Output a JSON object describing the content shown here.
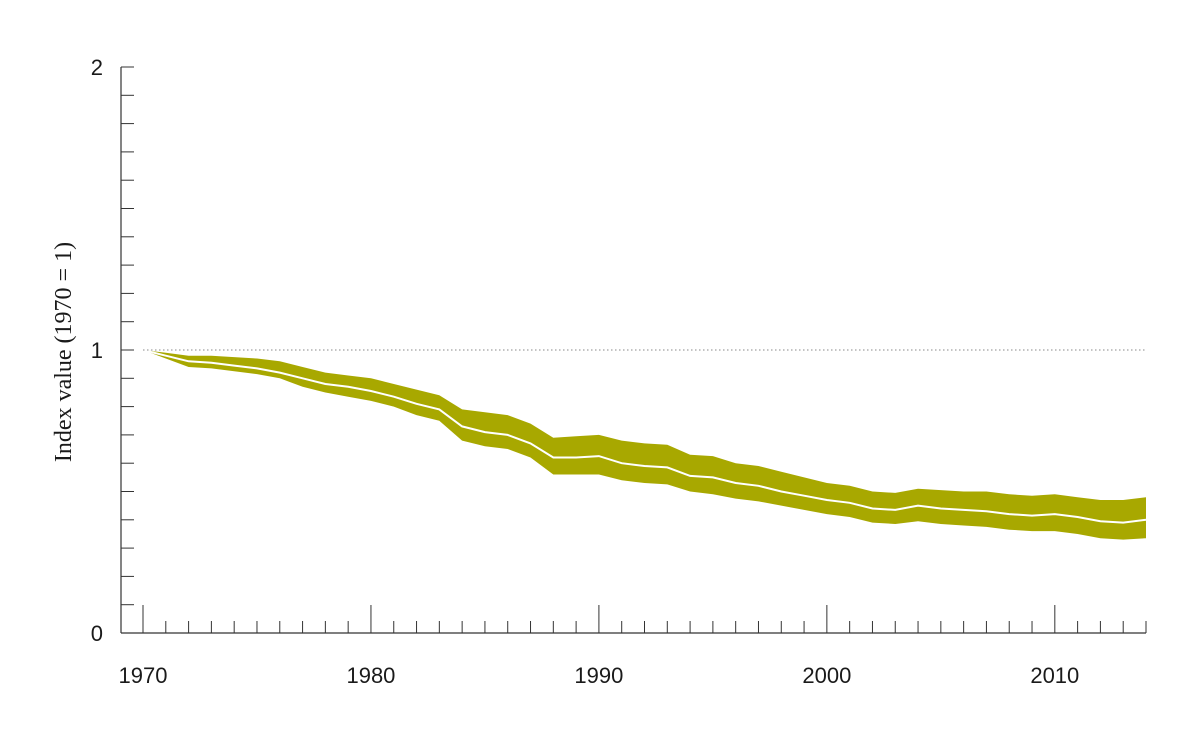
{
  "chart_data": {
    "type": "area",
    "title": "",
    "xlabel": "",
    "ylabel": "Index value (1970 = 1)",
    "xlim": [
      1970,
      2014
    ],
    "ylim": [
      0,
      2
    ],
    "x_ticks_major": [
      1970,
      1980,
      1990,
      2000,
      2010
    ],
    "x_tick_labels": [
      "1970",
      "1980",
      "1990",
      "2000",
      "2010"
    ],
    "y_ticks_major": [
      0,
      1,
      2
    ],
    "y_tick_labels": [
      "0",
      "1",
      "2"
    ],
    "y_minor_step": 0.1,
    "reference_line": {
      "y": 1,
      "style": "dotted"
    },
    "grid": false,
    "legend": "none",
    "colors": {
      "band": "#a8a800",
      "line": "#ffffff",
      "axis": "#333333",
      "reference": "#888888"
    },
    "x": [
      1970,
      1971,
      1972,
      1973,
      1974,
      1975,
      1976,
      1977,
      1978,
      1979,
      1980,
      1981,
      1982,
      1983,
      1984,
      1985,
      1986,
      1987,
      1988,
      1989,
      1990,
      1991,
      1992,
      1993,
      1994,
      1995,
      1996,
      1997,
      1998,
      1999,
      2000,
      2001,
      2002,
      2003,
      2004,
      2005,
      2006,
      2007,
      2008,
      2009,
      2010,
      2011,
      2012,
      2013,
      2014
    ],
    "series": [
      {
        "values": [
          1.0,
          0.98,
          0.96,
          0.955,
          0.945,
          0.935,
          0.92,
          0.9,
          0.88,
          0.87,
          0.855,
          0.835,
          0.81,
          0.79,
          0.73,
          0.71,
          0.7,
          0.67,
          0.62,
          0.62,
          0.625,
          0.6,
          0.59,
          0.585,
          0.555,
          0.55,
          0.53,
          0.52,
          0.5,
          0.485,
          0.47,
          0.46,
          0.44,
          0.435,
          0.45,
          0.44,
          0.435,
          0.43,
          0.42,
          0.415,
          0.42,
          0.41,
          0.395,
          0.39,
          0.4
        ]
      },
      {
        "values": [
          1.0,
          0.99,
          0.98,
          0.98,
          0.975,
          0.97,
          0.96,
          0.94,
          0.92,
          0.91,
          0.9,
          0.88,
          0.86,
          0.84,
          0.79,
          0.78,
          0.77,
          0.74,
          0.69,
          0.695,
          0.7,
          0.68,
          0.67,
          0.665,
          0.63,
          0.625,
          0.6,
          0.59,
          0.57,
          0.55,
          0.53,
          0.52,
          0.5,
          0.495,
          0.51,
          0.505,
          0.5,
          0.5,
          0.49,
          0.485,
          0.49,
          0.48,
          0.47,
          0.47,
          0.48
        ]
      },
      {
        "values": [
          1.0,
          0.97,
          0.94,
          0.935,
          0.925,
          0.915,
          0.9,
          0.87,
          0.85,
          0.835,
          0.82,
          0.8,
          0.77,
          0.75,
          0.68,
          0.66,
          0.65,
          0.62,
          0.56,
          0.56,
          0.56,
          0.54,
          0.53,
          0.525,
          0.5,
          0.49,
          0.475,
          0.465,
          0.45,
          0.435,
          0.42,
          0.41,
          0.39,
          0.385,
          0.395,
          0.385,
          0.38,
          0.375,
          0.365,
          0.36,
          0.36,
          0.35,
          0.335,
          0.33,
          0.335
        ]
      }
    ]
  }
}
